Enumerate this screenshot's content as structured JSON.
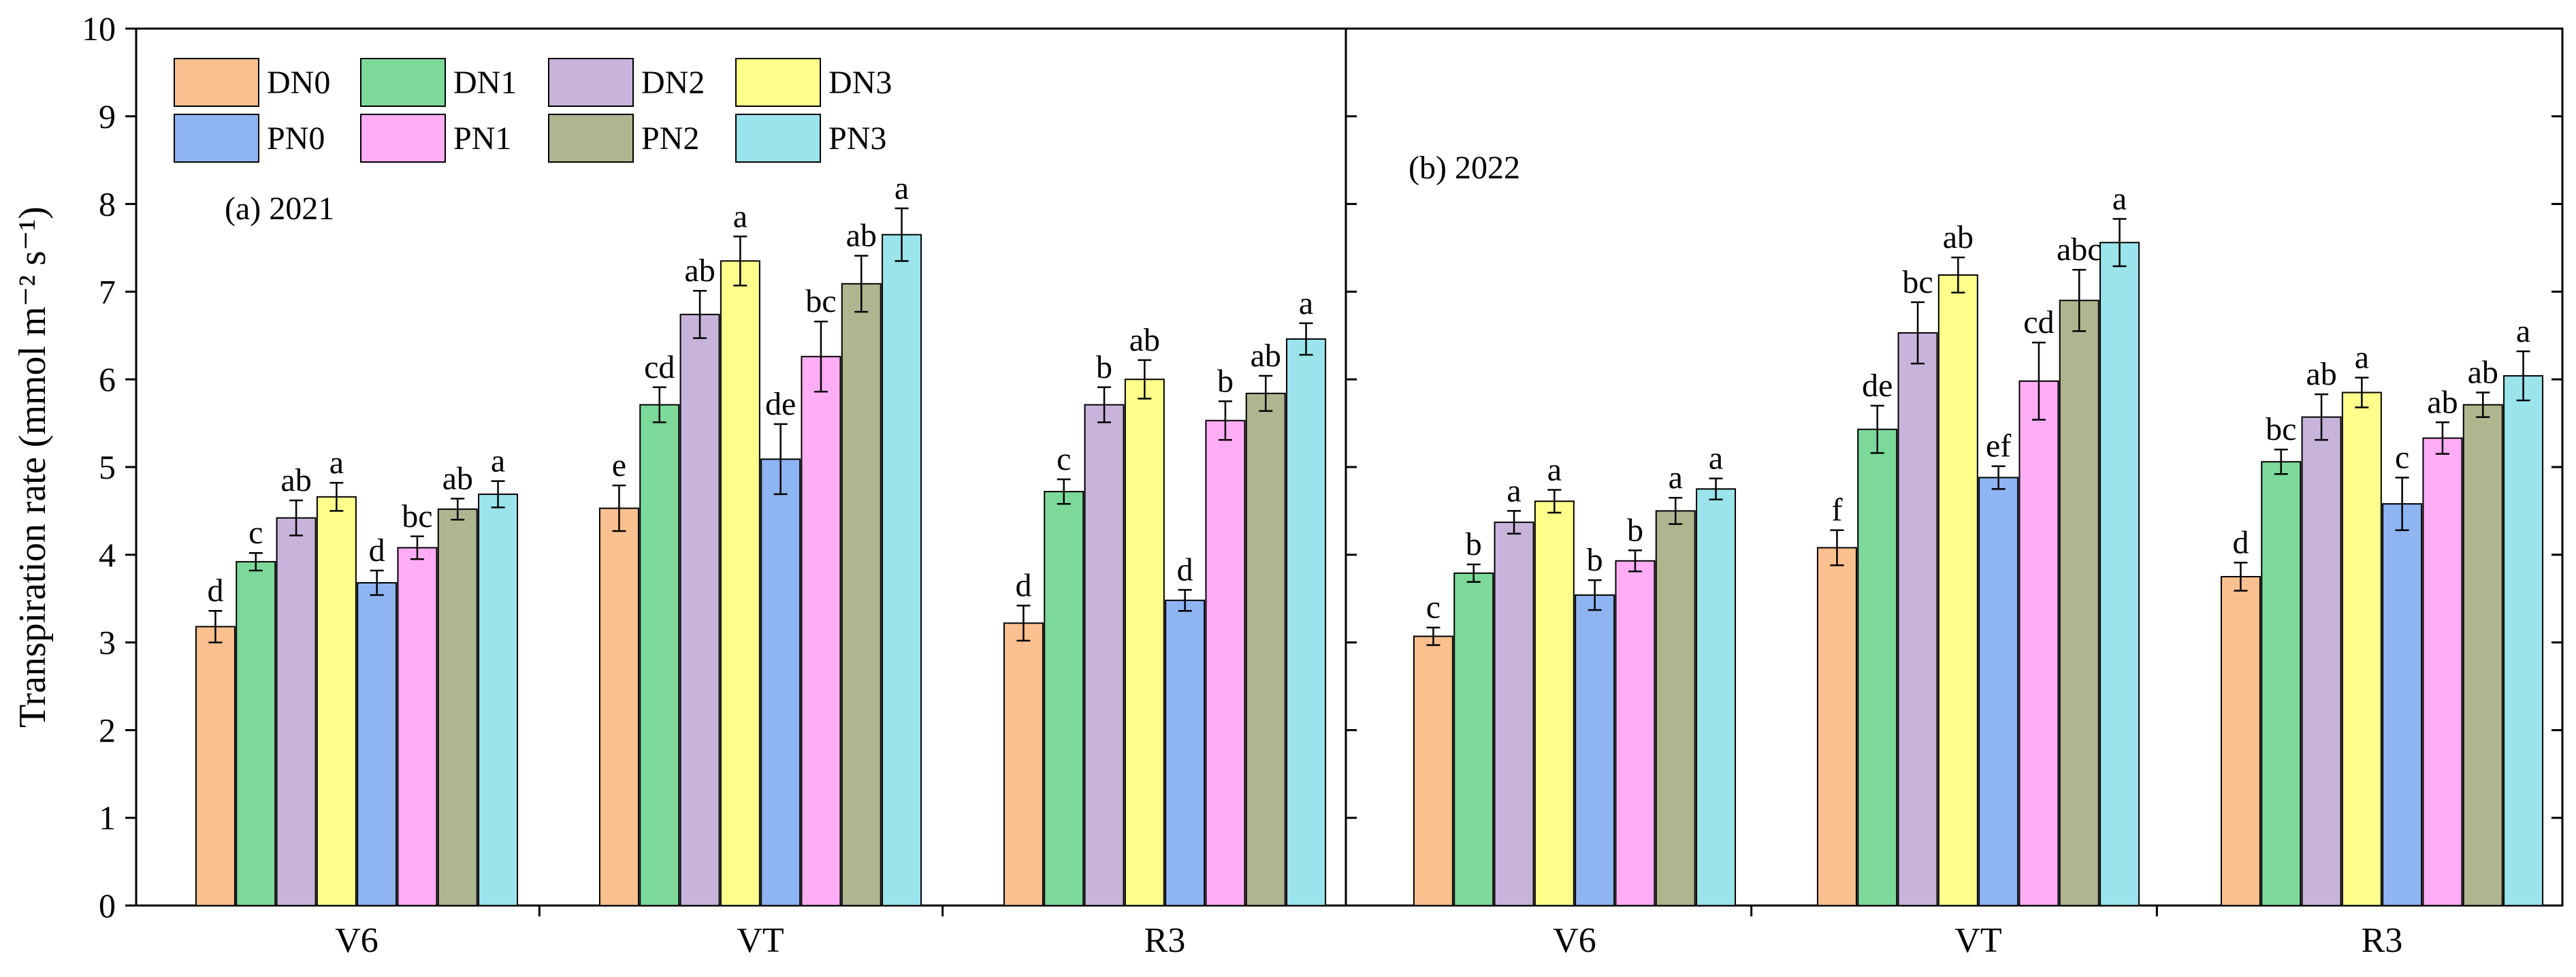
{
  "chart_data": {
    "type": "bar",
    "ylabel": "Transpiration rate (mmol m⁻² s⁻¹)",
    "ylim": [
      0,
      10
    ],
    "yticks": [
      0,
      1,
      2,
      3,
      4,
      5,
      6,
      7,
      8,
      9,
      10
    ],
    "grid": false,
    "legend_position": "top-left",
    "series": [
      {
        "name": "DN0",
        "color": "#FAC08F"
      },
      {
        "name": "DN1",
        "color": "#7DD99A"
      },
      {
        "name": "DN2",
        "color": "#C8B4DB"
      },
      {
        "name": "DN3",
        "color": "#FFFF8C"
      },
      {
        "name": "PN0",
        "color": "#8EB4F2"
      },
      {
        "name": "PN1",
        "color": "#FFADF5"
      },
      {
        "name": "PN2",
        "color": "#AFB58E"
      },
      {
        "name": "PN3",
        "color": "#9BE4EC"
      }
    ],
    "panels": [
      {
        "title": "(a) 2021",
        "categories": [
          "V6",
          "VT",
          "R3"
        ],
        "values": [
          [
            3.18,
            3.92,
            4.42,
            4.66,
            3.68,
            4.08,
            4.52,
            4.69
          ],
          [
            4.53,
            5.71,
            6.74,
            7.35,
            5.09,
            6.26,
            7.09,
            7.65
          ],
          [
            3.22,
            4.72,
            5.71,
            6.0,
            3.48,
            5.53,
            5.84,
            6.46
          ]
        ],
        "errors": [
          [
            0.18,
            0.1,
            0.2,
            0.16,
            0.14,
            0.13,
            0.12,
            0.15
          ],
          [
            0.26,
            0.2,
            0.27,
            0.28,
            0.4,
            0.4,
            0.32,
            0.3
          ],
          [
            0.2,
            0.14,
            0.2,
            0.22,
            0.12,
            0.22,
            0.2,
            0.18
          ]
        ],
        "letters": [
          [
            "d",
            "c",
            "ab",
            "a",
            "d",
            "bc",
            "ab",
            "a"
          ],
          [
            "e",
            "cd",
            "ab",
            "a",
            "de",
            "bc",
            "ab",
            "a"
          ],
          [
            "d",
            "c",
            "b",
            "ab",
            "d",
            "b",
            "ab",
            "a"
          ]
        ]
      },
      {
        "title": "(b) 2022",
        "categories": [
          "V6",
          "VT",
          "R3"
        ],
        "values": [
          [
            3.07,
            3.79,
            4.37,
            4.61,
            3.54,
            3.93,
            4.5,
            4.75
          ],
          [
            4.08,
            5.43,
            6.53,
            7.19,
            4.88,
            5.98,
            6.9,
            7.56
          ],
          [
            3.75,
            5.06,
            5.57,
            5.85,
            4.58,
            5.33,
            5.71,
            6.04
          ]
        ],
        "errors": [
          [
            0.1,
            0.1,
            0.13,
            0.13,
            0.17,
            0.12,
            0.15,
            0.12
          ],
          [
            0.2,
            0.27,
            0.35,
            0.2,
            0.13,
            0.44,
            0.35,
            0.27
          ],
          [
            0.16,
            0.14,
            0.26,
            0.17,
            0.3,
            0.18,
            0.14,
            0.28
          ]
        ],
        "letters": [
          [
            "c",
            "b",
            "a",
            "a",
            "b",
            "b",
            "a",
            "a"
          ],
          [
            "f",
            "de",
            "bc",
            "ab",
            "ef",
            "cd",
            "abc",
            "a"
          ],
          [
            "d",
            "bc",
            "ab",
            "a",
            "c",
            "ab",
            "ab",
            "a"
          ]
        ]
      }
    ]
  }
}
